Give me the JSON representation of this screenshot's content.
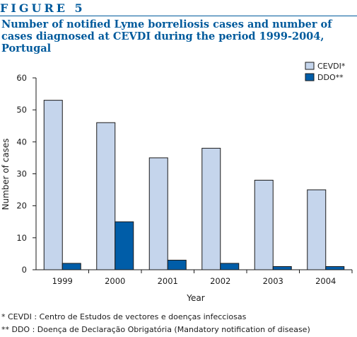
{
  "figure_label": "FIGURE 5",
  "title": "Number of notified Lyme borreliosis cases and number of cases diagnosed at CEVDI during the period 1999-2004, Portugal",
  "footnotes": [
    "* CEVDI : Centro de Estudos de vectores e doenças infecciosas",
    "** DDO : Doença de Declaração Obrigatória (Mandatory notification of disease)"
  ],
  "chart_data": {
    "type": "bar",
    "categories": [
      "1999",
      "2000",
      "2001",
      "2002",
      "2003",
      "2004"
    ],
    "series": [
      {
        "name": "CEVDI*",
        "values": [
          53,
          46,
          35,
          38,
          28,
          25
        ],
        "color": "#c5d5ec"
      },
      {
        "name": "DDO**",
        "values": [
          2,
          15,
          3,
          2,
          1,
          1
        ],
        "color": "#005da8"
      }
    ],
    "xlabel": "Year",
    "ylabel": "Number of cases",
    "ylim": [
      0,
      60
    ],
    "yticks": [
      0,
      10,
      20,
      30,
      40,
      50,
      60
    ],
    "grid": false,
    "legend_position": "top-right"
  }
}
